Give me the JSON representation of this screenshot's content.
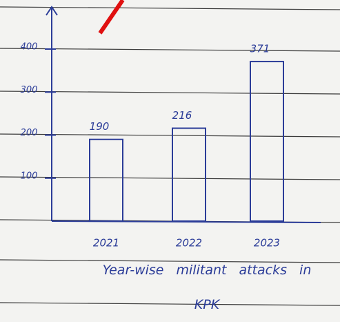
{
  "chart_data": {
    "type": "bar",
    "title": "Year-wise militant attacks in KPK",
    "categories": [
      "2021",
      "2022",
      "2023"
    ],
    "values": [
      190,
      216,
      371
    ],
    "color": "#2b3c98",
    "ylim": [
      0,
      490
    ],
    "yticks": [
      100,
      200,
      300,
      400
    ],
    "grid": false
  }
}
